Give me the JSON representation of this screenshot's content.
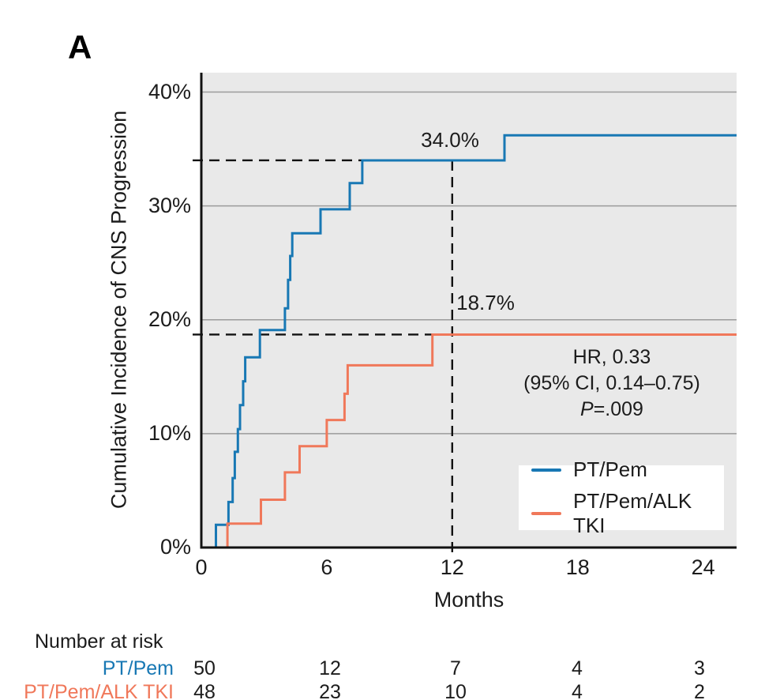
{
  "panel_label": "A",
  "y_axis": {
    "title": "Cumulative Incidence of CNS Progression",
    "ticks": [
      "0%",
      "10%",
      "20%",
      "30%",
      "40%"
    ]
  },
  "x_axis": {
    "title": "Months",
    "ticks": [
      "0",
      "6",
      "12",
      "18",
      "24"
    ]
  },
  "annotations": {
    "blue_value": "34.0%",
    "orange_value": "18.7%"
  },
  "stats": {
    "line1": "HR, 0.33",
    "line2": "(95% CI, 0.14–0.75)",
    "p_italic": "P",
    "p_rest": "=.009"
  },
  "legend": [
    {
      "label": "PT/Pem",
      "color": "#1878b4"
    },
    {
      "label": "PT/Pem/ALK TKI",
      "color": "#f0785a"
    }
  ],
  "risk_table": {
    "header": "Number at risk",
    "rows": [
      {
        "label": "PT/Pem",
        "color": "#1878b4",
        "counts": [
          "50",
          "12",
          "7",
          "4",
          "3"
        ]
      },
      {
        "label": "PT/Pem/ALK TKI",
        "color": "#f0785a",
        "counts": [
          "48",
          "23",
          "10",
          "4",
          "2"
        ]
      }
    ]
  },
  "colors": {
    "plot_background": "#e9e9e9",
    "gridline": "#9b9b9b",
    "axis": "#111111",
    "reference_dash": "#111111"
  },
  "chart_data": {
    "type": "line",
    "subtype": "step-cumulative-incidence",
    "xlabel": "Months",
    "ylabel": "Cumulative Incidence of CNS Progression",
    "xlim": [
      0,
      25.6
    ],
    "ylim": [
      0,
      41.7
    ],
    "x_ticks": [
      0,
      6,
      12,
      18,
      24
    ],
    "y_ticks": [
      0,
      10,
      20,
      30,
      40
    ],
    "grid": "horizontal",
    "legend_position": "lower-right-inside",
    "series": [
      {
        "name": "PT/Pem",
        "color": "#1878b4",
        "steps": [
          [
            0,
            0
          ],
          [
            0.7,
            2.0
          ],
          [
            1.3,
            4.0
          ],
          [
            1.5,
            6.1
          ],
          [
            1.6,
            8.4
          ],
          [
            1.75,
            10.4
          ],
          [
            1.85,
            12.5
          ],
          [
            2.0,
            14.6
          ],
          [
            2.1,
            16.7
          ],
          [
            2.8,
            19.1
          ],
          [
            4.0,
            21.0
          ],
          [
            4.15,
            23.5
          ],
          [
            4.25,
            25.6
          ],
          [
            4.35,
            27.6
          ],
          [
            5.7,
            29.7
          ],
          [
            7.1,
            32.0
          ],
          [
            7.7,
            34.0
          ],
          [
            14.5,
            36.2
          ]
        ],
        "value_at_12_months": 34.0
      },
      {
        "name": "PT/Pem/ALK TKI",
        "color": "#f0785a",
        "steps": [
          [
            0,
            0
          ],
          [
            1.25,
            2.1
          ],
          [
            2.85,
            4.2
          ],
          [
            4.0,
            6.6
          ],
          [
            4.7,
            8.9
          ],
          [
            6.0,
            11.2
          ],
          [
            6.85,
            13.5
          ],
          [
            7.0,
            16.0
          ],
          [
            11.05,
            18.7
          ]
        ],
        "value_at_12_months": 18.7
      }
    ],
    "reference_lines": {
      "vertical_month": 12,
      "horizontal_values": [
        34.0,
        18.7
      ]
    },
    "annotations": [
      "34.0%",
      "18.7%",
      "HR, 0.33",
      "(95% CI, 0.14–0.75)",
      "P=.009"
    ],
    "number_at_risk": {
      "months": [
        0,
        6,
        12,
        18,
        24
      ],
      "PT/Pem": [
        50,
        12,
        7,
        4,
        3
      ],
      "PT/Pem/ALK TKI": [
        48,
        23,
        10,
        4,
        2
      ]
    }
  }
}
